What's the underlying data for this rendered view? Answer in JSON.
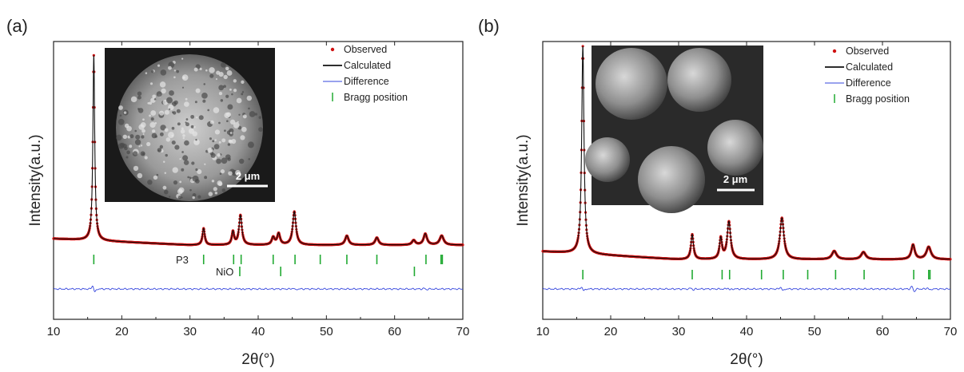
{
  "chart_data": [
    {
      "panel_label": "(a)",
      "type": "line",
      "xlabel": "2θ(°)",
      "ylabel": "Intensity(a.u.)",
      "xlim": [
        10,
        70
      ],
      "x_ticks": [
        10,
        20,
        30,
        40,
        50,
        60,
        70
      ],
      "y_ticks_shown": false,
      "legend": {
        "placement": "top-right",
        "entries": [
          "Observed",
          "Calculated",
          "Difference",
          "Bragg position"
        ]
      },
      "series_colors": {
        "observed": "#d01010",
        "calculated": "#111111",
        "difference": "#3344dd",
        "bragg": "#22aa33"
      },
      "peaks": [
        {
          "x": 15.9,
          "height": 1.0,
          "width": 0.16
        },
        {
          "x": 32.0,
          "height": 0.09,
          "width": 0.2
        },
        {
          "x": 36.3,
          "height": 0.07,
          "width": 0.2
        },
        {
          "x": 37.4,
          "height": 0.16,
          "width": 0.25
        },
        {
          "x": 42.2,
          "height": 0.04,
          "width": 0.25
        },
        {
          "x": 43.0,
          "height": 0.06,
          "width": 0.25
        },
        {
          "x": 45.3,
          "height": 0.18,
          "width": 0.28
        },
        {
          "x": 53.0,
          "height": 0.05,
          "width": 0.3
        },
        {
          "x": 57.4,
          "height": 0.04,
          "width": 0.3
        },
        {
          "x": 62.8,
          "height": 0.025,
          "width": 0.3
        },
        {
          "x": 64.5,
          "height": 0.06,
          "width": 0.3
        },
        {
          "x": 66.9,
          "height": 0.05,
          "width": 0.35
        }
      ],
      "bragg_rows": [
        {
          "label": "P3",
          "positions": [
            15.9,
            32.0,
            36.4,
            37.5,
            42.2,
            45.4,
            49.1,
            53.0,
            57.4,
            64.6,
            66.8,
            67.0
          ]
        },
        {
          "label": "NiO",
          "positions": [
            37.3,
            43.3,
            62.9
          ]
        }
      ],
      "difference_features": [
        {
          "x": 15.9,
          "amp": 1.0
        },
        {
          "x": 37.4,
          "amp": 0.25
        },
        {
          "x": 45.3,
          "amp": 0.3
        },
        {
          "x": 64.5,
          "amp": 0.2
        }
      ],
      "inset": {
        "description_hidden": true,
        "scale_bar": "2 μm"
      }
    },
    {
      "panel_label": "(b)",
      "type": "line",
      "xlabel": "2θ(°)",
      "ylabel": "Intensity(a.u.)",
      "xlim": [
        10,
        70
      ],
      "x_ticks": [
        10,
        20,
        30,
        40,
        50,
        60,
        70
      ],
      "y_ticks_shown": false,
      "legend": {
        "placement": "top-right",
        "entries": [
          "Observed",
          "Calculated",
          "Difference",
          "Bragg position"
        ]
      },
      "series_colors": {
        "observed": "#d01010",
        "calculated": "#111111",
        "difference": "#3344dd",
        "bragg": "#22aa33"
      },
      "peaks": [
        {
          "x": 15.9,
          "height": 1.0,
          "width": 0.2
        },
        {
          "x": 32.0,
          "height": 0.12,
          "width": 0.22
        },
        {
          "x": 36.2,
          "height": 0.1,
          "width": 0.22
        },
        {
          "x": 37.4,
          "height": 0.18,
          "width": 0.3
        },
        {
          "x": 45.2,
          "height": 0.2,
          "width": 0.35
        },
        {
          "x": 52.9,
          "height": 0.04,
          "width": 0.4
        },
        {
          "x": 57.2,
          "height": 0.035,
          "width": 0.4
        },
        {
          "x": 64.5,
          "height": 0.07,
          "width": 0.3
        },
        {
          "x": 66.8,
          "height": 0.06,
          "width": 0.4
        }
      ],
      "bragg_rows": [
        {
          "label": "",
          "positions": [
            15.9,
            32.0,
            36.4,
            37.5,
            42.2,
            45.4,
            49.0,
            53.1,
            57.3,
            64.6,
            66.8,
            67.0
          ]
        }
      ],
      "difference_features": [
        {
          "x": 15.9,
          "amp": 0.6
        },
        {
          "x": 32.0,
          "amp": 0.3
        },
        {
          "x": 37.4,
          "amp": 0.3
        },
        {
          "x": 45.2,
          "amp": 0.6
        },
        {
          "x": 64.5,
          "amp": 0.8
        },
        {
          "x": 66.8,
          "amp": 0.4
        }
      ],
      "inset": {
        "description_hidden": true,
        "scale_bar": "2 μm"
      }
    }
  ]
}
